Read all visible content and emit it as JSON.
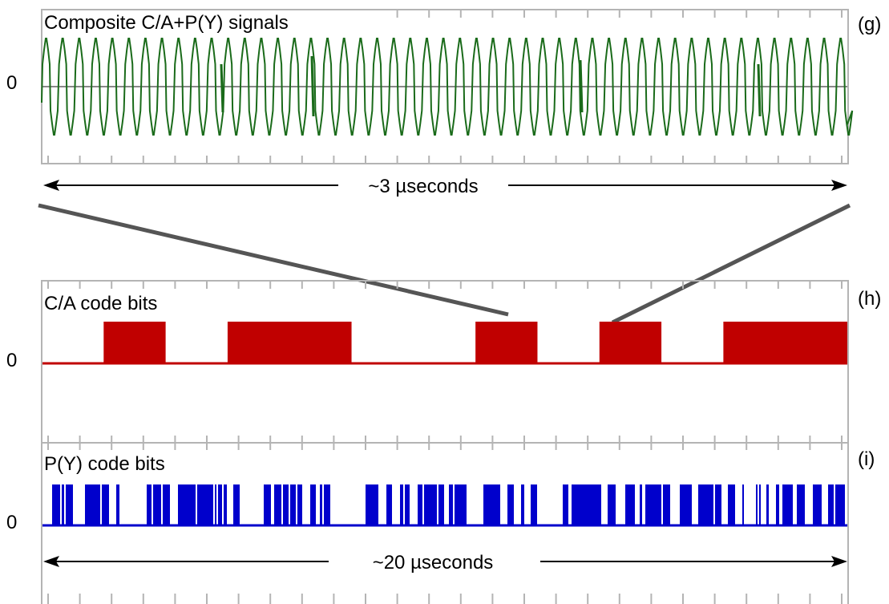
{
  "panels": {
    "g": {
      "title": "Composite C/A+P(Y) signals",
      "letter": "(g)",
      "zero_label": "0",
      "signal_color": "#1a6b1a"
    },
    "h": {
      "title": "C/A code bits",
      "letter": "(h)",
      "zero_label": "0",
      "bit_color": "#c00000",
      "bits": [
        0,
        1,
        0,
        1,
        1,
        0,
        0,
        1,
        0,
        1,
        0,
        1,
        1
      ]
    },
    "i": {
      "title": "P(Y) code bits",
      "letter": "(i)",
      "zero_label": "0",
      "bit_color": "#0000cc"
    }
  },
  "spans": {
    "top_label": "~3 µseconds",
    "bottom_label": "~20 µseconds"
  },
  "colors": {
    "frame": "#b4b4b4",
    "zoom_line": "#555555",
    "arrow": "#000000"
  }
}
